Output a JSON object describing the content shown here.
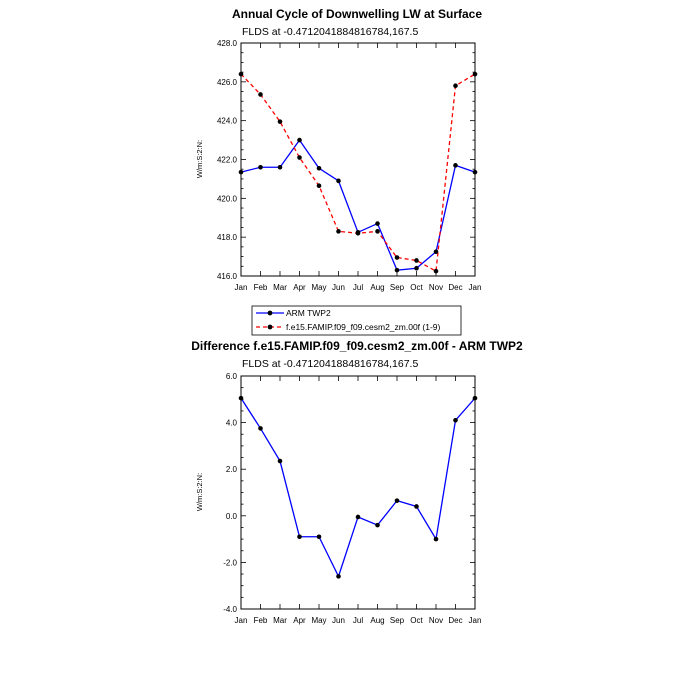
{
  "chart_data": [
    {
      "type": "line",
      "title": "Annual Cycle of Downwelling LW at Surface",
      "subtitle": "FLDS at -0.4712041884816784,167.5",
      "ylabel": "W/m:S:2:N:",
      "xlabel": "",
      "categories": [
        "Jan",
        "Feb",
        "Mar",
        "Apr",
        "May",
        "Jun",
        "Jul",
        "Aug",
        "Sep",
        "Oct",
        "Nov",
        "Dec",
        "Jan"
      ],
      "ylim": [
        416.0,
        428.0
      ],
      "yticks": [
        "416.0",
        "418.0",
        "420.0",
        "422.0",
        "424.0",
        "426.0",
        "428.0"
      ],
      "series": [
        {
          "name": "ARM TWP2",
          "color": "#0000ff",
          "dash": "solid",
          "values": [
            421.35,
            421.6,
            421.6,
            423.0,
            421.55,
            420.9,
            418.25,
            418.7,
            416.3,
            416.4,
            417.25,
            421.7,
            421.35
          ]
        },
        {
          "name": "f.e15.FAMIP.f09_f09.cesm2_zm.00f (1-9)",
          "color": "#ff0000",
          "dash": "dashed",
          "values": [
            426.4,
            425.35,
            423.95,
            422.1,
            420.65,
            418.3,
            418.2,
            418.3,
            416.95,
            416.8,
            416.25,
            425.8,
            426.4
          ]
        }
      ],
      "legend": "bottom"
    },
    {
      "type": "line",
      "title": "Difference f.e15.FAMIP.f09_f09.cesm2_zm.00f - ARM TWP2",
      "subtitle": "FLDS at -0.4712041884816784,167.5",
      "ylabel": "W/m:S:2:N:",
      "xlabel": "",
      "categories": [
        "Jan",
        "Feb",
        "Mar",
        "Apr",
        "May",
        "Jun",
        "Jul",
        "Aug",
        "Sep",
        "Oct",
        "Nov",
        "Dec",
        "Jan"
      ],
      "ylim": [
        -4.0,
        6.0
      ],
      "yticks": [
        "-4.0",
        "-2.0",
        "0.0",
        "2.0",
        "4.0",
        "6.0"
      ],
      "series": [
        {
          "name": "Difference",
          "color": "#0000ff",
          "dash": "solid",
          "values": [
            5.05,
            3.75,
            2.35,
            -0.9,
            -0.9,
            -2.6,
            -0.05,
            -0.4,
            0.65,
            0.4,
            -1.0,
            4.1,
            5.05
          ]
        }
      ]
    }
  ]
}
